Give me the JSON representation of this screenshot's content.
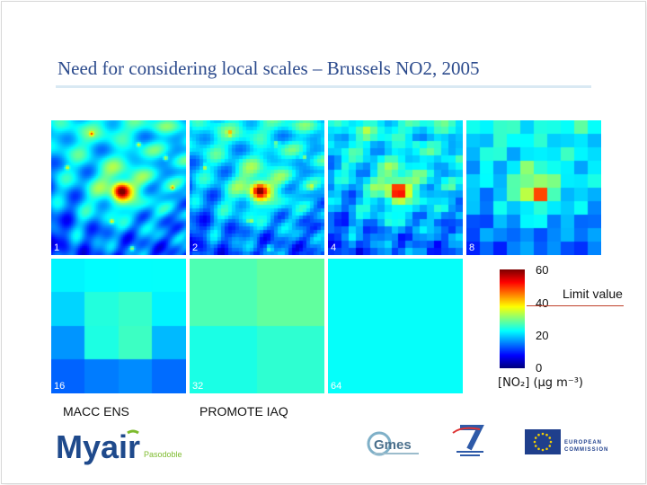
{
  "slide": {
    "title": "Need for considering local scales – Brussels NO2, 2005"
  },
  "panels": [
    {
      "label": "1",
      "resolution_km": 1
    },
    {
      "label": "2",
      "resolution_km": 2
    },
    {
      "label": "4",
      "resolution_km": 4
    },
    {
      "label": "8",
      "resolution_km": 8
    },
    {
      "label": "16",
      "resolution_km": 16
    },
    {
      "label": "32",
      "resolution_km": 32
    },
    {
      "label": "64",
      "resolution_km": 64
    }
  ],
  "legend": {
    "ticks": [
      "60",
      "40",
      "20",
      "0"
    ],
    "limit_label": "Limit value",
    "unit_label": "[NO₂]  (µg  m⁻³)",
    "range": [
      0,
      60
    ],
    "limit_value": 40
  },
  "captions": {
    "left": "MACC ENS",
    "right": "PROMOTE IAQ"
  },
  "logos": {
    "myair_text": "Myair",
    "myair_sub": "Pasodoble",
    "gmes_text": "Gmes",
    "eu_line1": "EUROPEAN",
    "eu_line2": "COMMISSION"
  },
  "colors": {
    "title": "#2b4a8c",
    "title_rule": "#d9e9f3",
    "myair_green": "#7dbb2d",
    "myair_blue": "#1f4a8c",
    "eu_blue": "#1f3f8c",
    "eu_star": "#f5d000"
  }
}
